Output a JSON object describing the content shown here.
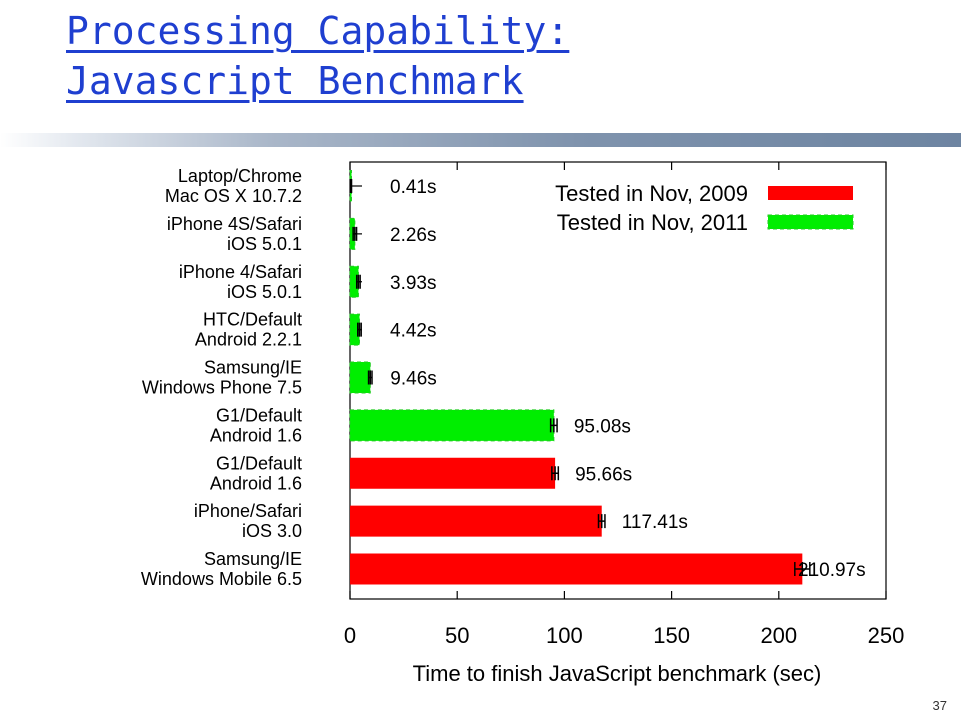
{
  "slide": {
    "title_line1": "Processing Capability:",
    "title_line2": "Javascript Benchmark",
    "page_number": "37"
  },
  "colors": {
    "series_2009": "#ff0000",
    "series_2011": "#00ee00",
    "title": "#1f3fd0"
  },
  "chart_data": {
    "type": "bar",
    "orientation": "horizontal",
    "title": "",
    "xlabel": "Time to finish JavaScript benchmark (sec)",
    "ylabel": "",
    "xlim": [
      0,
      250
    ],
    "xticks": [
      0,
      50,
      100,
      150,
      200,
      250
    ],
    "legend_position": "top-right",
    "categories": [
      [
        "Laptop/Chrome",
        "Mac OS X 10.7.2"
      ],
      [
        "iPhone 4S/Safari",
        "iOS 5.0.1"
      ],
      [
        "iPhone 4/Safari",
        "iOS 5.0.1"
      ],
      [
        "HTC/Default",
        "Android 2.2.1"
      ],
      [
        "Samsung/IE",
        "Windows Phone 7.5"
      ],
      [
        "G1/Default",
        "Android 1.6"
      ],
      [
        "G1/Default",
        "Android 1.6"
      ],
      [
        "iPhone/Safari",
        "iOS 3.0"
      ],
      [
        "Samsung/IE",
        "Windows Mobile 6.5"
      ]
    ],
    "values": [
      0.41,
      2.26,
      3.93,
      4.42,
      9.46,
      95.08,
      95.66,
      117.41,
      210.97
    ],
    "value_labels": [
      "0.41s",
      "2.26s",
      "3.93s",
      "4.42s",
      "9.46s",
      "95.08s",
      "95.66s",
      "117.41s",
      "210.97s"
    ],
    "error_margin": [
      0.3,
      0.8,
      0.8,
      0.8,
      0.8,
      1.5,
      1.5,
      1.5,
      3.5
    ],
    "series_of_bar": [
      "2011",
      "2011",
      "2011",
      "2011",
      "2011",
      "2011",
      "2009",
      "2009",
      "2009"
    ],
    "series": [
      {
        "key": "2009",
        "name": "Tested in Nov, 2009"
      },
      {
        "key": "2011",
        "name": "Tested in Nov, 2011"
      }
    ]
  }
}
